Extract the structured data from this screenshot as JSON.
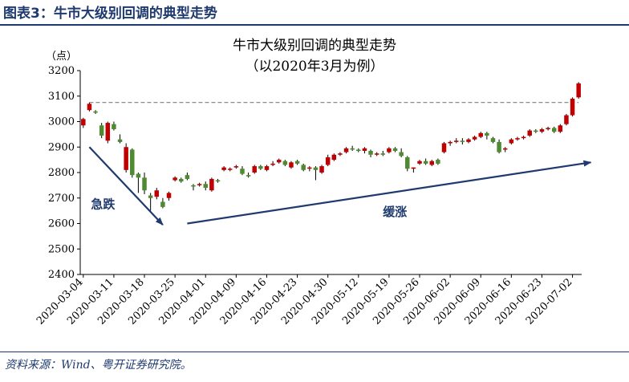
{
  "figure_label": "图表3：牛市大级别回调的典型走势",
  "source_note": "资料来源：Wind、粤开证券研究院。",
  "chart_data": {
    "type": "candlestick",
    "title": "牛市大级别回调的典型走势",
    "subtitle": "（以2020年3月为例）",
    "ylabel": "（点）",
    "ylim": [
      2400,
      3200
    ],
    "yticks": [
      2400,
      2500,
      2600,
      2700,
      2800,
      2900,
      3000,
      3100,
      3200
    ],
    "xtick_labels": [
      "2020-03-04",
      "2020-03-11",
      "2020-03-18",
      "2020-03-25",
      "2020-04-01",
      "2020-04-09",
      "2020-04-16",
      "2020-04-23",
      "2020-04-30",
      "2020-05-12",
      "2020-05-19",
      "2020-05-26",
      "2020-06-02",
      "2020-06-09",
      "2020-06-16",
      "2020-06-23",
      "2020-07-02"
    ],
    "xtick_indices": [
      0,
      5,
      10,
      15,
      20,
      25,
      30,
      35,
      40,
      45,
      50,
      55,
      60,
      65,
      70,
      75,
      80
    ],
    "reference_line": 3075,
    "annotations": [
      {
        "text": "急跌",
        "from_index": 1,
        "from_value": 2900,
        "to_index": 13,
        "to_value": 2595
      },
      {
        "text": "缓涨",
        "from_index": 17,
        "from_value": 2600,
        "to_index": 83,
        "to_value": 2840
      }
    ],
    "colors": {
      "up": "#c00000",
      "down": "#4e8a2f",
      "reference": "#7f7f7f",
      "arrow": "#1f3a6e"
    },
    "candles": [
      {
        "x": "2020-03-04",
        "o": 2985,
        "h": 3015,
        "l": 2975,
        "c": 3010
      },
      {
        "x": "2020-03-05",
        "o": 3045,
        "h": 3075,
        "l": 3040,
        "c": 3070
      },
      {
        "x": "2020-03-06",
        "o": 3040,
        "h": 3045,
        "l": 3030,
        "c": 3035
      },
      {
        "x": "2020-03-09",
        "o": 2985,
        "h": 2995,
        "l": 2935,
        "c": 2945
      },
      {
        "x": "2020-03-10",
        "o": 2925,
        "h": 3000,
        "l": 2915,
        "c": 2995
      },
      {
        "x": "2020-03-11",
        "o": 2990,
        "h": 3000,
        "l": 2965,
        "c": 2970
      },
      {
        "x": "2020-03-12",
        "o": 2930,
        "h": 2950,
        "l": 2915,
        "c": 2920
      },
      {
        "x": "2020-03-13",
        "o": 2810,
        "h": 2915,
        "l": 2800,
        "c": 2900
      },
      {
        "x": "2020-03-16",
        "o": 2890,
        "h": 2895,
        "l": 2780,
        "c": 2790
      },
      {
        "x": "2020-03-17",
        "o": 2795,
        "h": 2800,
        "l": 2720,
        "c": 2780
      },
      {
        "x": "2020-03-18",
        "o": 2780,
        "h": 2800,
        "l": 2715,
        "c": 2730
      },
      {
        "x": "2020-03-19",
        "o": 2710,
        "h": 2720,
        "l": 2650,
        "c": 2700
      },
      {
        "x": "2020-03-20",
        "o": 2705,
        "h": 2740,
        "l": 2695,
        "c": 2730
      },
      {
        "x": "2020-03-23",
        "o": 2685,
        "h": 2700,
        "l": 2660,
        "c": 2665
      },
      {
        "x": "2020-03-24",
        "o": 2700,
        "h": 2725,
        "l": 2690,
        "c": 2720
      },
      {
        "x": "2020-03-25",
        "o": 2770,
        "h": 2785,
        "l": 2765,
        "c": 2780
      },
      {
        "x": "2020-03-26",
        "o": 2775,
        "h": 2780,
        "l": 2760,
        "c": 2765
      },
      {
        "x": "2020-03-27",
        "o": 2790,
        "h": 2800,
        "l": 2770,
        "c": 2775
      },
      {
        "x": "2020-03-30",
        "o": 2750,
        "h": 2755,
        "l": 2730,
        "c": 2745
      },
      {
        "x": "2020-03-31",
        "o": 2750,
        "h": 2760,
        "l": 2745,
        "c": 2755
      },
      {
        "x": "2020-04-01",
        "o": 2755,
        "h": 2765,
        "l": 2730,
        "c": 2740
      },
      {
        "x": "2020-04-02",
        "o": 2730,
        "h": 2780,
        "l": 2725,
        "c": 2775
      },
      {
        "x": "2020-04-03",
        "o": 2770,
        "h": 2775,
        "l": 2760,
        "c": 2765
      },
      {
        "x": "2020-04-07",
        "o": 2810,
        "h": 2825,
        "l": 2805,
        "c": 2820
      },
      {
        "x": "2020-04-08",
        "o": 2815,
        "h": 2820,
        "l": 2805,
        "c": 2815
      },
      {
        "x": "2020-04-09",
        "o": 2820,
        "h": 2830,
        "l": 2815,
        "c": 2825
      },
      {
        "x": "2020-04-10",
        "o": 2815,
        "h": 2825,
        "l": 2790,
        "c": 2795
      },
      {
        "x": "2020-04-13",
        "o": 2790,
        "h": 2800,
        "l": 2780,
        "c": 2785
      },
      {
        "x": "2020-04-14",
        "o": 2800,
        "h": 2830,
        "l": 2795,
        "c": 2825
      },
      {
        "x": "2020-04-15",
        "o": 2825,
        "h": 2830,
        "l": 2810,
        "c": 2815
      },
      {
        "x": "2020-04-16",
        "o": 2810,
        "h": 2830,
        "l": 2805,
        "c": 2825
      },
      {
        "x": "2020-04-17",
        "o": 2830,
        "h": 2845,
        "l": 2825,
        "c": 2835
      },
      {
        "x": "2020-04-20",
        "o": 2840,
        "h": 2855,
        "l": 2835,
        "c": 2850
      },
      {
        "x": "2020-04-21",
        "o": 2845,
        "h": 2850,
        "l": 2825,
        "c": 2830
      },
      {
        "x": "2020-04-22",
        "o": 2820,
        "h": 2845,
        "l": 2815,
        "c": 2840
      },
      {
        "x": "2020-04-23",
        "o": 2845,
        "h": 2850,
        "l": 2830,
        "c": 2835
      },
      {
        "x": "2020-04-24",
        "o": 2830,
        "h": 2835,
        "l": 2805,
        "c": 2810
      },
      {
        "x": "2020-04-27",
        "o": 2815,
        "h": 2825,
        "l": 2805,
        "c": 2820
      },
      {
        "x": "2020-04-28",
        "o": 2820,
        "h": 2825,
        "l": 2770,
        "c": 2810
      },
      {
        "x": "2020-04-29",
        "o": 2800,
        "h": 2830,
        "l": 2795,
        "c": 2825
      },
      {
        "x": "2020-04-30",
        "o": 2830,
        "h": 2870,
        "l": 2825,
        "c": 2860
      },
      {
        "x": "2020-05-06",
        "o": 2850,
        "h": 2875,
        "l": 2845,
        "c": 2870
      },
      {
        "x": "2020-05-07",
        "o": 2870,
        "h": 2880,
        "l": 2865,
        "c": 2875
      },
      {
        "x": "2020-05-08",
        "o": 2880,
        "h": 2900,
        "l": 2875,
        "c": 2895
      },
      {
        "x": "2020-05-11",
        "o": 2895,
        "h": 2905,
        "l": 2885,
        "c": 2890
      },
      {
        "x": "2020-05-12",
        "o": 2890,
        "h": 2895,
        "l": 2880,
        "c": 2885
      },
      {
        "x": "2020-05-13",
        "o": 2885,
        "h": 2900,
        "l": 2875,
        "c": 2895
      },
      {
        "x": "2020-05-14",
        "o": 2885,
        "h": 2890,
        "l": 2860,
        "c": 2870
      },
      {
        "x": "2020-05-15",
        "o": 2870,
        "h": 2880,
        "l": 2865,
        "c": 2875
      },
      {
        "x": "2020-05-18",
        "o": 2875,
        "h": 2885,
        "l": 2865,
        "c": 2870
      },
      {
        "x": "2020-05-19",
        "o": 2880,
        "h": 2900,
        "l": 2875,
        "c": 2895
      },
      {
        "x": "2020-05-20",
        "o": 2895,
        "h": 2900,
        "l": 2880,
        "c": 2885
      },
      {
        "x": "2020-05-21",
        "o": 2880,
        "h": 2895,
        "l": 2860,
        "c": 2865
      },
      {
        "x": "2020-05-22",
        "o": 2860,
        "h": 2865,
        "l": 2805,
        "c": 2815
      },
      {
        "x": "2020-05-25",
        "o": 2815,
        "h": 2820,
        "l": 2800,
        "c": 2820
      },
      {
        "x": "2020-05-26",
        "o": 2835,
        "h": 2850,
        "l": 2830,
        "c": 2845
      },
      {
        "x": "2020-05-27",
        "o": 2845,
        "h": 2855,
        "l": 2830,
        "c": 2835
      },
      {
        "x": "2020-05-28",
        "o": 2830,
        "h": 2850,
        "l": 2825,
        "c": 2845
      },
      {
        "x": "2020-05-29",
        "o": 2850,
        "h": 2855,
        "l": 2830,
        "c": 2835
      },
      {
        "x": "2020-06-01",
        "o": 2880,
        "h": 2920,
        "l": 2875,
        "c": 2915
      },
      {
        "x": "2020-06-02",
        "o": 2915,
        "h": 2925,
        "l": 2905,
        "c": 2920
      },
      {
        "x": "2020-06-03",
        "o": 2920,
        "h": 2935,
        "l": 2915,
        "c": 2925
      },
      {
        "x": "2020-06-04",
        "o": 2925,
        "h": 2935,
        "l": 2910,
        "c": 2920
      },
      {
        "x": "2020-06-05",
        "o": 2920,
        "h": 2935,
        "l": 2915,
        "c": 2930
      },
      {
        "x": "2020-06-08",
        "o": 2930,
        "h": 2945,
        "l": 2925,
        "c": 2940
      },
      {
        "x": "2020-06-09",
        "o": 2940,
        "h": 2960,
        "l": 2935,
        "c": 2955
      },
      {
        "x": "2020-06-10",
        "o": 2955,
        "h": 2960,
        "l": 2930,
        "c": 2945
      },
      {
        "x": "2020-06-11",
        "o": 2935,
        "h": 2940,
        "l": 2915,
        "c": 2920
      },
      {
        "x": "2020-06-12",
        "o": 2920,
        "h": 2930,
        "l": 2875,
        "c": 2880
      },
      {
        "x": "2020-06-15",
        "o": 2890,
        "h": 2900,
        "l": 2880,
        "c": 2895
      },
      {
        "x": "2020-06-16",
        "o": 2915,
        "h": 2935,
        "l": 2910,
        "c": 2930
      },
      {
        "x": "2020-06-17",
        "o": 2930,
        "h": 2940,
        "l": 2925,
        "c": 2935
      },
      {
        "x": "2020-06-18",
        "o": 2935,
        "h": 2945,
        "l": 2930,
        "c": 2940
      },
      {
        "x": "2020-06-19",
        "o": 2945,
        "h": 2970,
        "l": 2940,
        "c": 2965
      },
      {
        "x": "2020-06-22",
        "o": 2965,
        "h": 2970,
        "l": 2955,
        "c": 2960
      },
      {
        "x": "2020-06-23",
        "o": 2960,
        "h": 2975,
        "l": 2955,
        "c": 2970
      },
      {
        "x": "2020-06-24",
        "o": 2970,
        "h": 2980,
        "l": 2965,
        "c": 2975
      },
      {
        "x": "2020-06-29",
        "o": 2975,
        "h": 2980,
        "l": 2955,
        "c": 2960
      },
      {
        "x": "2020-06-30",
        "o": 2960,
        "h": 2990,
        "l": 2955,
        "c": 2985
      },
      {
        "x": "2020-07-01",
        "o": 2990,
        "h": 3030,
        "l": 2985,
        "c": 3025
      },
      {
        "x": "2020-07-02",
        "o": 3025,
        "h": 3095,
        "l": 3020,
        "c": 3090
      },
      {
        "x": "2020-07-03",
        "o": 3095,
        "h": 3155,
        "l": 3090,
        "c": 3150
      }
    ]
  }
}
